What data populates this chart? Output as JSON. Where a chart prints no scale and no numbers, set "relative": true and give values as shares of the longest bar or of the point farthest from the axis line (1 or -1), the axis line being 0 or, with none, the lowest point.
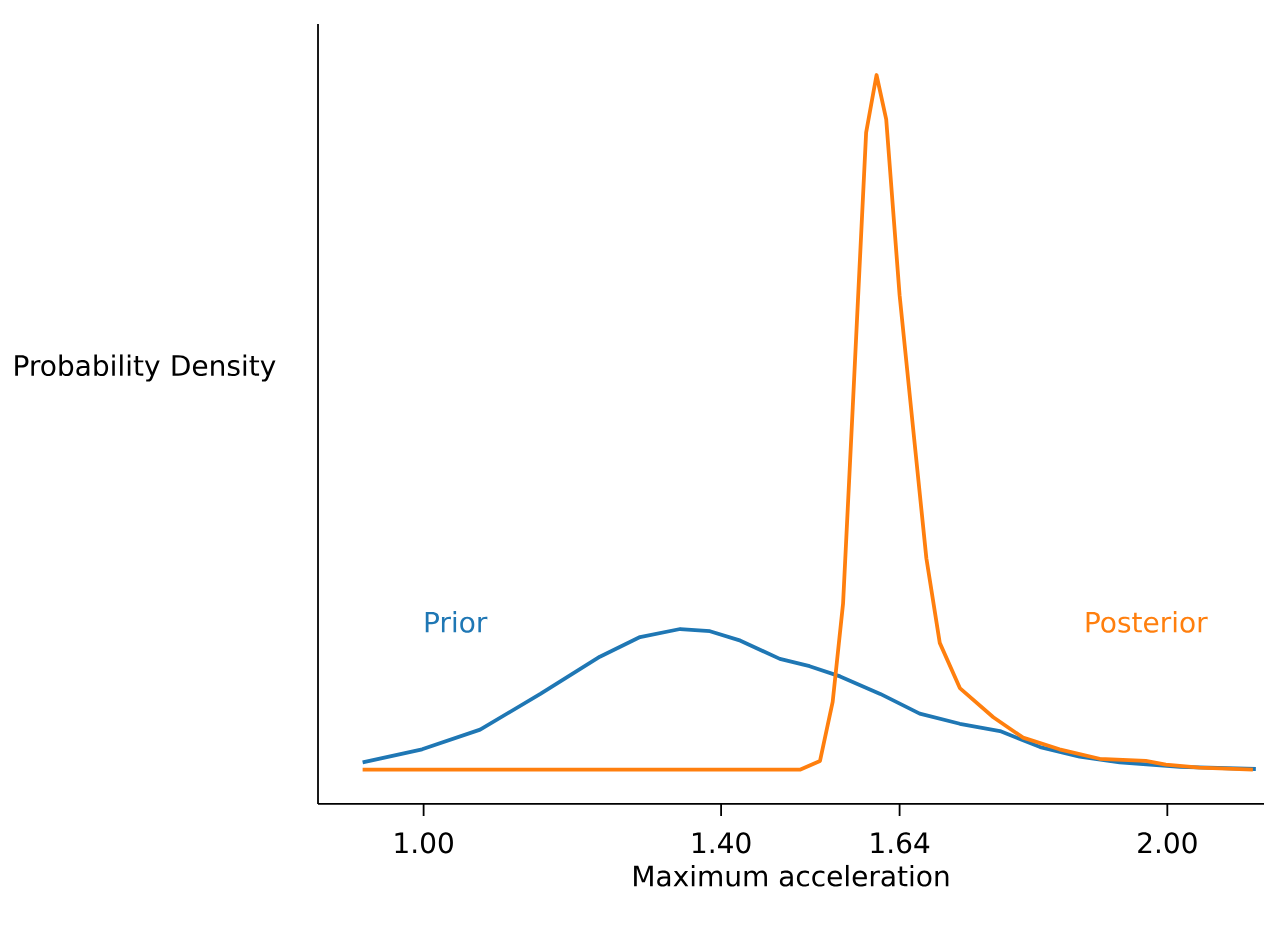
{
  "chart_data": {
    "type": "line",
    "xlabel": "Maximum acceleration",
    "ylabel": "Probability Density",
    "relative": true,
    "legend": false,
    "grid": false,
    "xlim": [
      0.858,
      2.13
    ],
    "xticks": [
      {
        "value": 1.0,
        "label": "1.00"
      },
      {
        "value": 1.4,
        "label": "1.40"
      },
      {
        "value": 1.64,
        "label": "1.64"
      },
      {
        "value": 2.0,
        "label": "2.00"
      }
    ],
    "series": [
      {
        "name": "Prior",
        "color": "#1f77b4",
        "x": [
          0.918,
          0.998,
          1.076,
          1.157,
          1.237,
          1.291,
          1.345,
          1.385,
          1.426,
          1.479,
          1.519,
          1.56,
          1.614,
          1.667,
          1.721,
          1.775,
          1.829,
          1.882,
          1.936,
          2.017,
          2.119
        ],
        "values": [
          0.057,
          0.075,
          0.102,
          0.151,
          0.202,
          0.229,
          0.24,
          0.237,
          0.224,
          0.199,
          0.189,
          0.175,
          0.151,
          0.124,
          0.11,
          0.1,
          0.078,
          0.065,
          0.057,
          0.051,
          0.048
        ]
      },
      {
        "name": "Posterior",
        "color": "#ff7f0e",
        "x": [
          0.918,
          1.506,
          1.533,
          1.55,
          1.564,
          1.577,
          1.586,
          1.595,
          1.609,
          1.622,
          1.64,
          1.658,
          1.676,
          1.694,
          1.721,
          1.766,
          1.806,
          1.855,
          1.909,
          1.971,
          1.998,
          2.043,
          2.115
        ],
        "values": [
          0.047,
          0.047,
          0.059,
          0.14,
          0.275,
          0.544,
          0.733,
          0.921,
          1.0,
          0.939,
          0.698,
          0.517,
          0.337,
          0.221,
          0.159,
          0.119,
          0.091,
          0.075,
          0.062,
          0.059,
          0.054,
          0.05,
          0.047
        ]
      }
    ]
  }
}
